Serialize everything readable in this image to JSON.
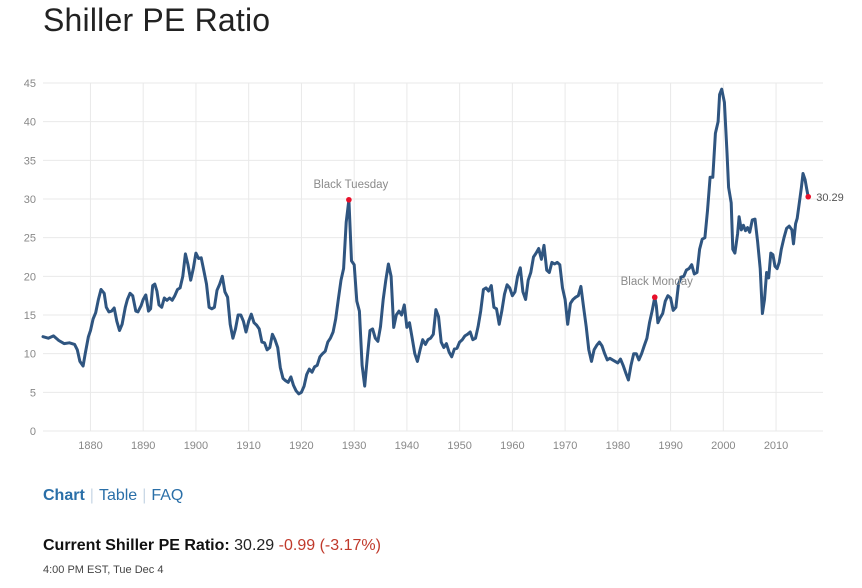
{
  "page": {
    "title": "Shiller PE Ratio"
  },
  "nav": {
    "tabs": [
      "Chart",
      "Table",
      "FAQ"
    ],
    "active": "Chart"
  },
  "current": {
    "label": "Current Shiller PE Ratio:",
    "value": "30.29",
    "change": "-0.99 (-3.17%)",
    "timestamp": "4:00 PM EST, Tue Dec 4"
  },
  "colors": {
    "line": "#2f5580",
    "marker": "#e8102a",
    "grid": "#e9e9e9",
    "tick": "#888888",
    "annotation": "#8a8a8a",
    "change": "#c0392b",
    "link": "#2a6fa8"
  },
  "chart_data": {
    "type": "line",
    "title": "Shiller PE Ratio",
    "xlabel": "",
    "ylabel": "",
    "xlim": [
      1871,
      2018.9
    ],
    "ylim": [
      0,
      45
    ],
    "yticks": [
      0,
      5,
      10,
      15,
      20,
      25,
      30,
      35,
      40,
      45
    ],
    "xticks": [
      1880,
      1890,
      1900,
      1910,
      1920,
      1930,
      1940,
      1950,
      1960,
      1970,
      1980,
      1990,
      2000,
      2010
    ],
    "grid": true,
    "series": [
      {
        "name": "Shiller PE Ratio",
        "points": [
          [
            1871,
            12.2
          ],
          [
            1872,
            12.0
          ],
          [
            1873,
            12.3
          ],
          [
            1874,
            11.7
          ],
          [
            1875,
            11.3
          ],
          [
            1876,
            11.4
          ],
          [
            1877,
            11.2
          ],
          [
            1877.5,
            10.5
          ],
          [
            1878,
            9.0
          ],
          [
            1878.6,
            8.4
          ],
          [
            1879,
            10.0
          ],
          [
            1879.6,
            12.2
          ],
          [
            1880,
            13.0
          ],
          [
            1880.5,
            14.5
          ],
          [
            1881,
            15.3
          ],
          [
            1881.5,
            17.0
          ],
          [
            1882,
            18.3
          ],
          [
            1882.6,
            17.8
          ],
          [
            1883,
            16.0
          ],
          [
            1883.5,
            15.4
          ],
          [
            1884,
            15.5
          ],
          [
            1884.5,
            15.9
          ],
          [
            1885,
            14.2
          ],
          [
            1885.5,
            13.0
          ],
          [
            1886,
            13.8
          ],
          [
            1886.6,
            16.0
          ],
          [
            1887,
            17.0
          ],
          [
            1887.5,
            17.8
          ],
          [
            1888,
            17.5
          ],
          [
            1888.6,
            15.5
          ],
          [
            1889,
            15.4
          ],
          [
            1889.6,
            16.2
          ],
          [
            1890,
            17.0
          ],
          [
            1890.5,
            17.6
          ],
          [
            1891,
            15.5
          ],
          [
            1891.4,
            15.8
          ],
          [
            1891.8,
            18.8
          ],
          [
            1892.2,
            19.0
          ],
          [
            1892.6,
            18.1
          ],
          [
            1893,
            16.3
          ],
          [
            1893.5,
            16.0
          ],
          [
            1894,
            17.2
          ],
          [
            1894.5,
            16.9
          ],
          [
            1895,
            17.2
          ],
          [
            1895.5,
            16.9
          ],
          [
            1896,
            17.5
          ],
          [
            1896.5,
            18.3
          ],
          [
            1897,
            18.5
          ],
          [
            1897.5,
            20.0
          ],
          [
            1898,
            22.9
          ],
          [
            1898.5,
            21.5
          ],
          [
            1899,
            19.5
          ],
          [
            1899.5,
            21.0
          ],
          [
            1900,
            23.0
          ],
          [
            1900.5,
            22.3
          ],
          [
            1901,
            22.4
          ],
          [
            1901.5,
            20.7
          ],
          [
            1902,
            19.0
          ],
          [
            1902.5,
            16.0
          ],
          [
            1903,
            15.8
          ],
          [
            1903.5,
            16.0
          ],
          [
            1904,
            18.2
          ],
          [
            1904.5,
            19.0
          ],
          [
            1905,
            20.0
          ],
          [
            1905.5,
            18.0
          ],
          [
            1906,
            17.3
          ],
          [
            1906.5,
            13.8
          ],
          [
            1907,
            12.0
          ],
          [
            1907.5,
            13.2
          ],
          [
            1908,
            15.0
          ],
          [
            1908.5,
            15.0
          ],
          [
            1909,
            14.2
          ],
          [
            1909.5,
            12.8
          ],
          [
            1910,
            14.2
          ],
          [
            1910.5,
            15.1
          ],
          [
            1911,
            14.0
          ],
          [
            1911.5,
            13.7
          ],
          [
            1912,
            13.2
          ],
          [
            1912.5,
            11.5
          ],
          [
            1913,
            11.4
          ],
          [
            1913.5,
            10.5
          ],
          [
            1914,
            10.8
          ],
          [
            1914.5,
            12.5
          ],
          [
            1915,
            11.8
          ],
          [
            1915.5,
            10.8
          ],
          [
            1916,
            8.2
          ],
          [
            1916.5,
            6.8
          ],
          [
            1917,
            6.5
          ],
          [
            1917.5,
            6.3
          ],
          [
            1918,
            7.0
          ],
          [
            1918.5,
            5.9
          ],
          [
            1919,
            5.2
          ],
          [
            1919.5,
            4.8
          ],
          [
            1920,
            5.0
          ],
          [
            1920.5,
            5.8
          ],
          [
            1921,
            7.3
          ],
          [
            1921.5,
            8.0
          ],
          [
            1922,
            7.6
          ],
          [
            1922.5,
            8.3
          ],
          [
            1923,
            8.5
          ],
          [
            1923.5,
            9.6
          ],
          [
            1924,
            10.0
          ],
          [
            1924.5,
            10.3
          ],
          [
            1925,
            11.5
          ],
          [
            1925.5,
            12.0
          ],
          [
            1926,
            12.8
          ],
          [
            1926.5,
            14.5
          ],
          [
            1927,
            17.0
          ],
          [
            1927.5,
            19.5
          ],
          [
            1928,
            21.0
          ],
          [
            1928.5,
            27.0
          ],
          [
            1929,
            29.9
          ],
          [
            1929.5,
            22.0
          ],
          [
            1930,
            21.5
          ],
          [
            1930.5,
            16.8
          ],
          [
            1931,
            15.5
          ],
          [
            1931.5,
            8.5
          ],
          [
            1932,
            5.8
          ],
          [
            1932.5,
            9.5
          ],
          [
            1933,
            13.0
          ],
          [
            1933.5,
            13.2
          ],
          [
            1934,
            12.0
          ],
          [
            1934.5,
            11.6
          ],
          [
            1935,
            13.5
          ],
          [
            1935.5,
            17.0
          ],
          [
            1936,
            19.5
          ],
          [
            1936.5,
            21.6
          ],
          [
            1937,
            20.0
          ],
          [
            1937.5,
            13.4
          ],
          [
            1938,
            15.0
          ],
          [
            1938.5,
            15.5
          ],
          [
            1939,
            15.0
          ],
          [
            1939.5,
            16.3
          ],
          [
            1940,
            13.4
          ],
          [
            1940.5,
            14.0
          ],
          [
            1941,
            12.0
          ],
          [
            1941.5,
            10.0
          ],
          [
            1942,
            9.0
          ],
          [
            1942.5,
            10.5
          ],
          [
            1943,
            11.8
          ],
          [
            1943.5,
            11.2
          ],
          [
            1944,
            11.8
          ],
          [
            1944.5,
            12.0
          ],
          [
            1945,
            12.5
          ],
          [
            1945.5,
            15.7
          ],
          [
            1946,
            14.8
          ],
          [
            1946.5,
            11.5
          ],
          [
            1947,
            10.8
          ],
          [
            1947.5,
            11.3
          ],
          [
            1948,
            10.2
          ],
          [
            1948.5,
            9.6
          ],
          [
            1949,
            10.6
          ],
          [
            1949.5,
            10.7
          ],
          [
            1950,
            11.5
          ],
          [
            1950.5,
            11.8
          ],
          [
            1951,
            12.3
          ],
          [
            1951.5,
            12.5
          ],
          [
            1952,
            12.8
          ],
          [
            1952.5,
            11.8
          ],
          [
            1953,
            12.0
          ],
          [
            1953.5,
            13.5
          ],
          [
            1954,
            15.5
          ],
          [
            1954.5,
            18.3
          ],
          [
            1955,
            18.5
          ],
          [
            1955.5,
            18.1
          ],
          [
            1956,
            18.8
          ],
          [
            1956.5,
            16.0
          ],
          [
            1957,
            15.8
          ],
          [
            1957.5,
            13.8
          ],
          [
            1958,
            15.5
          ],
          [
            1958.5,
            17.7
          ],
          [
            1959,
            18.9
          ],
          [
            1959.5,
            18.5
          ],
          [
            1960,
            17.5
          ],
          [
            1960.5,
            18.0
          ],
          [
            1961,
            20.0
          ],
          [
            1961.5,
            21.1
          ],
          [
            1962,
            18.0
          ],
          [
            1962.5,
            17.0
          ],
          [
            1963,
            19.5
          ],
          [
            1963.5,
            20.5
          ],
          [
            1964,
            22.5
          ],
          [
            1964.5,
            23.0
          ],
          [
            1965,
            23.6
          ],
          [
            1965.5,
            22.2
          ],
          [
            1966,
            24.0
          ],
          [
            1966.5,
            20.8
          ],
          [
            1967,
            20.5
          ],
          [
            1967.5,
            21.8
          ],
          [
            1968,
            21.6
          ],
          [
            1968.5,
            21.8
          ],
          [
            1969,
            21.5
          ],
          [
            1969.5,
            18.5
          ],
          [
            1970,
            17.0
          ],
          [
            1970.5,
            13.8
          ],
          [
            1971,
            16.5
          ],
          [
            1971.5,
            17.0
          ],
          [
            1972,
            17.3
          ],
          [
            1972.5,
            17.5
          ],
          [
            1973,
            18.7
          ],
          [
            1973.5,
            16.0
          ],
          [
            1974,
            13.5
          ],
          [
            1974.5,
            10.5
          ],
          [
            1975,
            9.0
          ],
          [
            1975.5,
            10.5
          ],
          [
            1976,
            11.1
          ],
          [
            1976.5,
            11.5
          ],
          [
            1977,
            11.0
          ],
          [
            1977.5,
            10.0
          ],
          [
            1978,
            9.2
          ],
          [
            1978.5,
            9.4
          ],
          [
            1979,
            9.2
          ],
          [
            1979.5,
            9.0
          ],
          [
            1980,
            8.8
          ],
          [
            1980.5,
            9.3
          ],
          [
            1981,
            8.5
          ],
          [
            1981.5,
            7.5
          ],
          [
            1982,
            6.6
          ],
          [
            1982.5,
            8.5
          ],
          [
            1983,
            10.0
          ],
          [
            1983.5,
            10.0
          ],
          [
            1984,
            9.2
          ],
          [
            1984.5,
            10.0
          ],
          [
            1985,
            11.0
          ],
          [
            1985.5,
            12.0
          ],
          [
            1986,
            14.0
          ],
          [
            1986.5,
            15.5
          ],
          [
            1987,
            17.3
          ],
          [
            1987.3,
            16.2
          ],
          [
            1987.6,
            14.0
          ],
          [
            1988,
            14.6
          ],
          [
            1988.5,
            15.2
          ],
          [
            1989,
            16.8
          ],
          [
            1989.5,
            17.5
          ],
          [
            1990,
            17.2
          ],
          [
            1990.5,
            15.6
          ],
          [
            1991,
            16.0
          ],
          [
            1991.5,
            19.0
          ],
          [
            1992,
            19.9
          ],
          [
            1992.5,
            20.0
          ],
          [
            1993,
            20.8
          ],
          [
            1993.5,
            21.0
          ],
          [
            1994,
            21.5
          ],
          [
            1994.5,
            20.3
          ],
          [
            1995,
            20.5
          ],
          [
            1995.5,
            23.5
          ],
          [
            1996,
            24.8
          ],
          [
            1996.5,
            25.0
          ],
          [
            1997,
            28.5
          ],
          [
            1997.5,
            32.8
          ],
          [
            1998,
            32.8
          ],
          [
            1998.5,
            38.5
          ],
          [
            1999,
            40.0
          ],
          [
            1999.3,
            43.5
          ],
          [
            1999.7,
            44.2
          ],
          [
            2000.2,
            42.5
          ],
          [
            2000.7,
            36.0
          ],
          [
            2001,
            31.5
          ],
          [
            2001.5,
            29.5
          ],
          [
            2001.8,
            23.5
          ],
          [
            2002.2,
            23.0
          ],
          [
            2002.7,
            25.5
          ],
          [
            2003,
            27.7
          ],
          [
            2003.4,
            26.0
          ],
          [
            2003.8,
            26.6
          ],
          [
            2004.2,
            25.9
          ],
          [
            2004.6,
            26.3
          ],
          [
            2005,
            25.7
          ],
          [
            2005.5,
            27.3
          ],
          [
            2006,
            27.4
          ],
          [
            2006.5,
            24.5
          ],
          [
            2007,
            21.0
          ],
          [
            2007.4,
            15.2
          ],
          [
            2007.8,
            17.0
          ],
          [
            2008.2,
            20.5
          ],
          [
            2008.6,
            19.8
          ],
          [
            2009,
            23.0
          ],
          [
            2009.4,
            22.8
          ],
          [
            2009.8,
            21.3
          ],
          [
            2010.2,
            21.0
          ],
          [
            2010.6,
            21.8
          ],
          [
            2011,
            23.5
          ],
          [
            2011.5,
            25.0
          ],
          [
            2012,
            26.2
          ],
          [
            2012.5,
            26.5
          ],
          [
            2013,
            26.0
          ],
          [
            2013.3,
            24.2
          ],
          [
            2013.7,
            26.8
          ],
          [
            2014,
            27.5
          ],
          [
            2014.4,
            29.5
          ],
          [
            2014.8,
            31.5
          ],
          [
            2015.1,
            33.3
          ],
          [
            2015.5,
            32.5
          ],
          [
            2015.8,
            31.3
          ],
          [
            2016.1,
            30.29
          ]
        ]
      }
    ],
    "annotations": [
      {
        "label": "Black Tuesday",
        "x": 1929,
        "y": 29.9
      },
      {
        "label": "Black Monday",
        "x": 1987,
        "y": 17.3
      }
    ],
    "end_label": {
      "label": "30.29",
      "x": 2016.1,
      "y": 30.29
    }
  }
}
